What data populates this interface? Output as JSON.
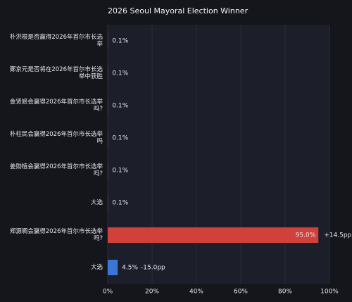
{
  "chart_data": {
    "type": "bar",
    "orientation": "horizontal",
    "title": "2026 Seoul Mayoral Election Winner",
    "categories": [
      "朴洪根是否赢得2026年首尔市长选举",
      "鄭京元是否将在2026年首尔市长选举中获胜",
      "金贤姬会赢得2026年首尔市长选举吗?",
      "朴柱民会赢得2026年首尔市长选举吗",
      "姜勋植会赢得2026年首尔市长选举吗?",
      "大选",
      "郑源晭会赢得2026年首尔市长选举吗?",
      "大选"
    ],
    "values": [
      0.1,
      0.1,
      0.1,
      0.1,
      0.1,
      0.1,
      95.0,
      4.5
    ],
    "value_labels": [
      "0.1%",
      "0.1%",
      "0.1%",
      "0.1%",
      "0.1%",
      "0.1%",
      "95.0%",
      "4.5%"
    ],
    "change_labels": [
      null,
      null,
      null,
      null,
      null,
      null,
      "+14.5pp",
      "-15.0pp"
    ],
    "colors": [
      "#6b6f7e",
      "#6b6f7e",
      "#6b6f7e",
      "#6b6f7e",
      "#6b6f7e",
      "#6b6f7e",
      "#d0413b",
      "#3a76d6"
    ],
    "xlim": [
      0,
      100
    ],
    "xticks": [
      {
        "value": 0,
        "label": "0%"
      },
      {
        "value": 20,
        "label": "20%"
      },
      {
        "value": 40,
        "label": "40%"
      },
      {
        "value": 60,
        "label": "60%"
      },
      {
        "value": 80,
        "label": "80%"
      },
      {
        "value": 100,
        "label": "100%"
      }
    ],
    "grid": true
  }
}
